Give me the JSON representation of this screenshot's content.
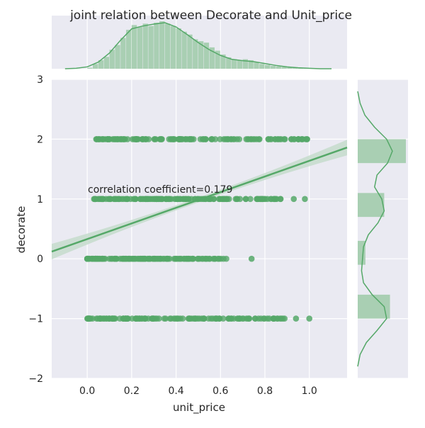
{
  "chart_data": {
    "type": "scatter",
    "title": "joint relation between Decorate and Unit_price",
    "xlabel": "unit_price",
    "ylabel": "decorate",
    "xlim": [
      -0.16,
      1.17
    ],
    "ylim": [
      -2,
      3
    ],
    "x_ticks": [
      "0.0",
      "0.2",
      "0.4",
      "0.6",
      "0.8",
      "1.0"
    ],
    "y_ticks": [
      "−2",
      "−1",
      "0",
      "1",
      "2",
      "3"
    ],
    "x_tick_values": [
      0.0,
      0.2,
      0.4,
      0.6,
      0.8,
      1.0
    ],
    "y_tick_values": [
      -2,
      -1,
      0,
      1,
      2,
      3
    ],
    "grid": true,
    "annotation": "correlation coefficient=0.179",
    "correlation": 0.179,
    "regression_line": {
      "x": [
        -0.16,
        1.17
      ],
      "y": [
        0.12,
        1.86
      ]
    },
    "point_groups": [
      {
        "y": 2,
        "x_min": 0.04,
        "x_max": 1.0,
        "outliers": [
          0.89,
          0.93,
          0.95,
          0.97,
          0.99
        ]
      },
      {
        "y": 1,
        "x_min": 0.02,
        "x_max": 0.88,
        "outliers": [
          0.93,
          0.98
        ]
      },
      {
        "y": 0,
        "x_min": 0.0,
        "x_max": 0.63,
        "outliers": [
          0.0,
          0.74
        ]
      },
      {
        "y": -1,
        "x_min": 0.0,
        "x_max": 0.89,
        "outliers": [
          0.94,
          1.0
        ]
      }
    ],
    "x_marginal_hist": {
      "bin_edges": [
        0.0,
        0.025,
        0.05,
        0.075,
        0.1,
        0.125,
        0.15,
        0.175,
        0.2,
        0.225,
        0.25,
        0.275,
        0.3,
        0.325,
        0.35,
        0.375,
        0.4,
        0.425,
        0.45,
        0.475,
        0.5,
        0.525,
        0.55,
        0.575,
        0.6,
        0.625,
        0.65,
        0.675,
        0.7,
        0.725,
        0.75,
        0.775,
        0.8,
        0.825,
        0.85,
        0.875,
        0.9,
        0.925,
        0.95,
        0.975,
        1.0
      ],
      "heights": [
        0.02,
        0.1,
        0.18,
        0.25,
        0.4,
        0.5,
        0.65,
        0.82,
        0.92,
        0.88,
        0.95,
        0.9,
        0.97,
        1.0,
        0.95,
        0.9,
        0.85,
        0.78,
        0.72,
        0.62,
        0.58,
        0.55,
        0.45,
        0.38,
        0.3,
        0.24,
        0.2,
        0.18,
        0.2,
        0.18,
        0.14,
        0.1,
        0.08,
        0.06,
        0.05,
        0.04,
        0.03,
        0.03,
        0.02,
        0.02
      ],
      "kde_x": [
        -0.1,
        -0.05,
        0.0,
        0.05,
        0.1,
        0.15,
        0.2,
        0.25,
        0.3,
        0.35,
        0.4,
        0.45,
        0.5,
        0.55,
        0.6,
        0.65,
        0.7,
        0.75,
        0.8,
        0.85,
        0.9,
        0.95,
        1.0,
        1.05,
        1.1
      ],
      "kde_y": [
        0.0,
        0.01,
        0.04,
        0.14,
        0.33,
        0.6,
        0.84,
        0.9,
        0.94,
        0.97,
        0.88,
        0.72,
        0.55,
        0.4,
        0.28,
        0.2,
        0.17,
        0.15,
        0.11,
        0.07,
        0.04,
        0.02,
        0.01,
        0.0,
        0.0
      ]
    },
    "y_marginal_hist": {
      "bars": [
        {
          "y_from": 1.6,
          "y_to": 2.0,
          "width": 1.0
        },
        {
          "y_from": 0.7,
          "y_to": 1.1,
          "width": 0.55
        },
        {
          "y_from": -0.1,
          "y_to": 0.3,
          "width": 0.16
        },
        {
          "y_from": -1.0,
          "y_to": -0.6,
          "width": 0.67
        }
      ],
      "kde_y": [
        -1.8,
        -1.6,
        -1.4,
        -1.2,
        -1.0,
        -0.8,
        -0.6,
        -0.4,
        -0.2,
        0.0,
        0.2,
        0.4,
        0.6,
        0.8,
        1.0,
        1.2,
        1.4,
        1.6,
        1.8,
        2.0,
        2.2,
        2.4,
        2.6,
        2.8
      ],
      "kde_w": [
        0.0,
        0.05,
        0.18,
        0.4,
        0.6,
        0.55,
        0.3,
        0.12,
        0.08,
        0.1,
        0.12,
        0.22,
        0.42,
        0.55,
        0.5,
        0.35,
        0.4,
        0.62,
        0.72,
        0.6,
        0.35,
        0.15,
        0.05,
        0.0
      ]
    },
    "colors": {
      "points": "#55a868",
      "bars": "#a9cfb3",
      "background": "#eaeaf2",
      "grid": "#ffffff",
      "ci_band": "#c6dccd"
    }
  }
}
